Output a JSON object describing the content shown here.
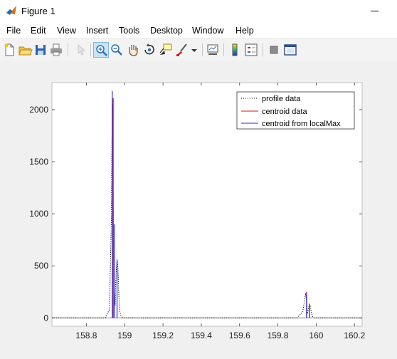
{
  "window": {
    "title": "Figure 1"
  },
  "menu": [
    "File",
    "Edit",
    "View",
    "Insert",
    "Tools",
    "Desktop",
    "Window",
    "Help"
  ],
  "toolbar": {
    "buttons": [
      "new-figure",
      "open-file",
      "save-figure",
      "print-figure",
      "edit-plot",
      "zoom-in",
      "zoom-out",
      "pan",
      "rotate-3d",
      "data-cursor",
      "brush",
      "link-plot",
      "insert-colorbar",
      "insert-legend",
      "hide-plot-tools",
      "show-plot-tools"
    ]
  },
  "chart_data": {
    "type": "line",
    "xlim": [
      158.62,
      160.24
    ],
    "ylim": [
      -80,
      2260
    ],
    "xticks": [
      158.8,
      159,
      159.2,
      159.4,
      159.6,
      159.8,
      160,
      160.2
    ],
    "xtick_labels": [
      "158.8",
      "159",
      "159.2",
      "159.4",
      "159.6",
      "159.8",
      "160",
      "160.2"
    ],
    "yticks": [
      0,
      500,
      1000,
      1500,
      2000
    ],
    "ytick_labels": [
      "0",
      "500",
      "1000",
      "1500",
      "2000"
    ],
    "legend_position": "top-right",
    "series": [
      {
        "name": "profile data",
        "style": "dotted",
        "color": "#000000",
        "x": [
          158.62,
          158.9,
          158.92,
          158.93,
          158.935,
          158.94,
          158.945,
          158.95,
          158.955,
          158.96,
          158.965,
          158.97,
          158.975,
          158.98,
          158.985,
          158.99,
          159.0,
          159.1,
          159.3,
          159.5,
          159.7,
          159.9,
          159.93,
          159.94,
          159.945,
          159.95,
          159.955,
          159.96,
          159.965,
          159.97,
          159.975,
          159.98,
          159.99,
          160.24
        ],
        "y": [
          0,
          0,
          80,
          900,
          2050,
          1200,
          300,
          120,
          420,
          560,
          480,
          200,
          60,
          20,
          10,
          5,
          0,
          0,
          0,
          0,
          0,
          0,
          60,
          180,
          240,
          150,
          40,
          90,
          130,
          110,
          50,
          15,
          0,
          0
        ]
      },
      {
        "name": "centroid data",
        "style": "stem",
        "color": "#e01010",
        "x": [
          158.94,
          159.95,
          159.965
        ],
        "y": [
          2110,
          250,
          130
        ]
      },
      {
        "name": "centroid from localMax",
        "style": "stem",
        "color": "#2a2ad8",
        "x": [
          158.935,
          158.945,
          158.96,
          159.95,
          159.965
        ],
        "y": [
          2180,
          900,
          560,
          230,
          120
        ]
      }
    ],
    "baseline": {
      "color": "#888888",
      "y": 0
    }
  }
}
